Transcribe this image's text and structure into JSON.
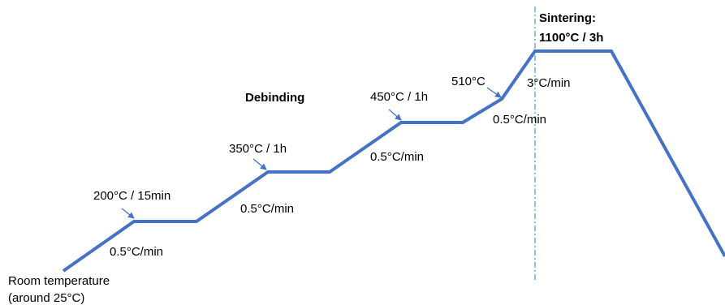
{
  "colors": {
    "profile_line": "#4472C4",
    "arrow": "#4472C4",
    "divider": "#5B9BD5",
    "text": "#000000"
  },
  "labels": {
    "start_line1": "Room temperature",
    "start_line2": "(around 25°C)",
    "ramp1_rate": "0.5°C/min",
    "hold1": "200°C / 15min",
    "ramp2_rate": "0.5°C/min",
    "hold2": "350°C / 1h",
    "debinding": "Debinding",
    "ramp3_rate": "0.5°C/min",
    "hold3": "450°C / 1h",
    "point_510": "510°C",
    "ramp4_rate": "0.5°C/min",
    "ramp5_rate": "3°C/min",
    "sintering_line1": "Sintering:",
    "sintering_line2": "1100°C / 3h"
  }
}
